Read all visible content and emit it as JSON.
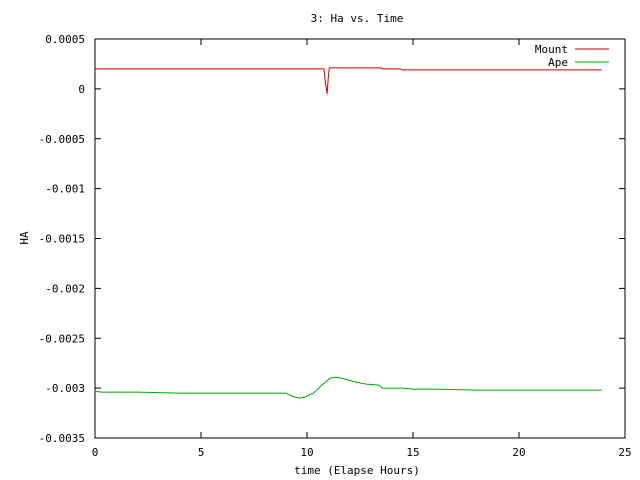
{
  "chart_data": {
    "type": "line",
    "title": "3: Ha vs. Time",
    "xlabel": "time (Elapse Hours)",
    "ylabel": "HA",
    "xlim": [
      0,
      25
    ],
    "ylim": [
      -0.0035,
      0.0005
    ],
    "x_ticks": [
      0,
      5,
      10,
      15,
      20,
      25
    ],
    "y_ticks": [
      0.0005,
      0,
      -0.0005,
      -0.001,
      -0.0015,
      -0.002,
      -0.0025,
      -0.003,
      -0.0035
    ],
    "x_tick_labels": [
      "0",
      "5",
      "10",
      "15",
      "20",
      "25"
    ],
    "y_tick_labels": [
      "0.0005",
      "0",
      "-0.0005",
      "-0.001",
      "-0.0015",
      "-0.002",
      "-0.0025",
      "-0.003",
      "-0.0035"
    ],
    "legend_position": "top-right",
    "grid": false,
    "series": [
      {
        "name": "Mount",
        "color": "#cc0000",
        "points": [
          [
            0,
            0.0002
          ],
          [
            2,
            0.0002
          ],
          [
            4,
            0.0002
          ],
          [
            6,
            0.0002
          ],
          [
            8,
            0.0002
          ],
          [
            10,
            0.0002
          ],
          [
            10.7,
            0.0002
          ],
          [
            10.8,
            0.0002
          ],
          [
            10.85,
            0.0001
          ],
          [
            10.95,
            -5e-05
          ],
          [
            11.0,
            0.0001
          ],
          [
            11.05,
            0.00021
          ],
          [
            12,
            0.00021
          ],
          [
            13,
            0.00021
          ],
          [
            13.5,
            0.00021
          ],
          [
            13.55,
            0.0002
          ],
          [
            14.4,
            0.0002
          ],
          [
            14.5,
            0.00019
          ],
          [
            16,
            0.00019
          ],
          [
            18,
            0.00019
          ],
          [
            20,
            0.00019
          ],
          [
            22,
            0.00019
          ],
          [
            23.9,
            0.00019
          ]
        ]
      },
      {
        "name": "Ape",
        "color": "#00aa00",
        "points": [
          [
            0,
            -0.00303
          ],
          [
            0.3,
            -0.00304
          ],
          [
            2,
            -0.00304
          ],
          [
            4,
            -0.00305
          ],
          [
            6,
            -0.00305
          ],
          [
            8,
            -0.00305
          ],
          [
            9.0,
            -0.00305
          ],
          [
            9.3,
            -0.00308
          ],
          [
            9.6,
            -0.0031
          ],
          [
            9.9,
            -0.00309
          ],
          [
            10.3,
            -0.00305
          ],
          [
            10.7,
            -0.00297
          ],
          [
            11.1,
            -0.0029
          ],
          [
            11.4,
            -0.00289
          ],
          [
            11.8,
            -0.00291
          ],
          [
            12.3,
            -0.00294
          ],
          [
            12.8,
            -0.00296
          ],
          [
            13.4,
            -0.00297
          ],
          [
            13.55,
            -0.003
          ],
          [
            14.5,
            -0.003
          ],
          [
            15,
            -0.00301
          ],
          [
            16,
            -0.00301
          ],
          [
            18,
            -0.00302
          ],
          [
            20,
            -0.00302
          ],
          [
            22,
            -0.00302
          ],
          [
            23.9,
            -0.00302
          ]
        ]
      }
    ]
  }
}
